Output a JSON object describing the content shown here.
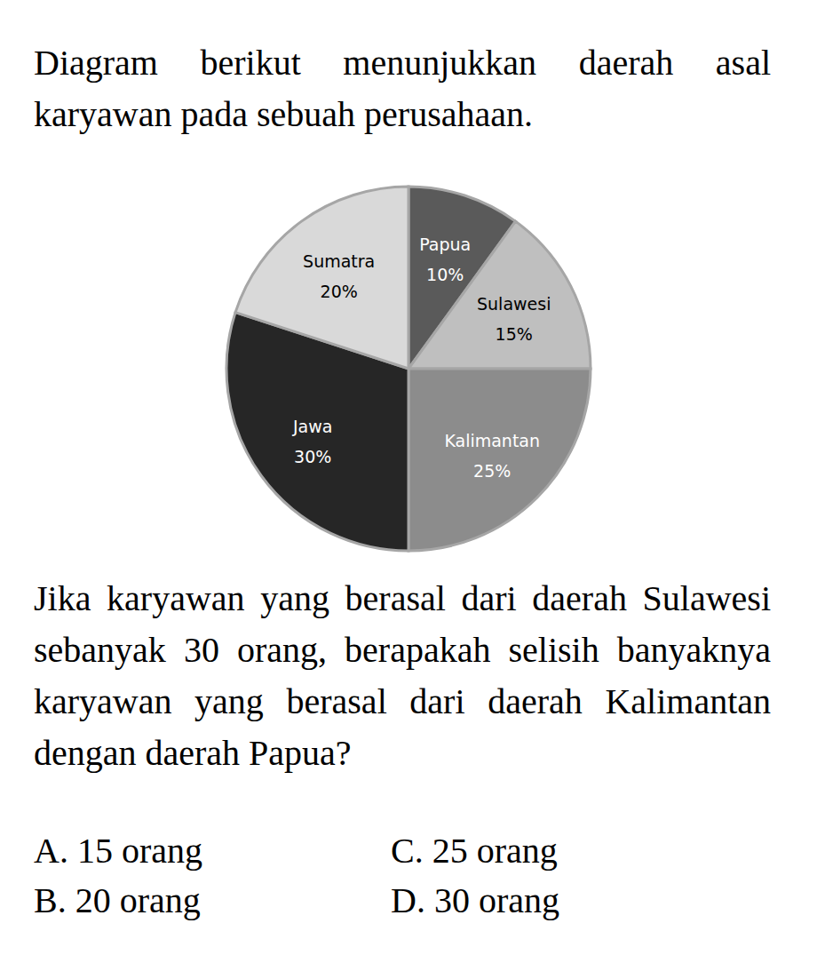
{
  "intro": "Diagram berikut menunjukkan daerah asal karyawan pada sebuah perusahaan.",
  "chart_data": {
    "type": "pie",
    "categories": [
      "Papua",
      "Sulawesi",
      "Kalimantan",
      "Jawa",
      "Sumatra"
    ],
    "values": [
      10,
      15,
      25,
      30,
      20
    ],
    "value_labels": [
      "10%",
      "15%",
      "25%",
      "30%",
      "20%"
    ],
    "colors": [
      "#5a5a5a",
      "#bfbfbf",
      "#8c8c8c",
      "#262626",
      "#d9d9d9"
    ],
    "data_labels": true
  },
  "question": "Jika karyawan yang berasal dari daerah Sulawesi sebanyak 30 orang, berapakah selisih banyaknya karyawan yang berasal dari daerah Kalimantan dengan daerah Papua?",
  "options": [
    "A. 15 orang",
    "B. 20 orang",
    "C. 25 orang",
    "D. 30 orang"
  ]
}
